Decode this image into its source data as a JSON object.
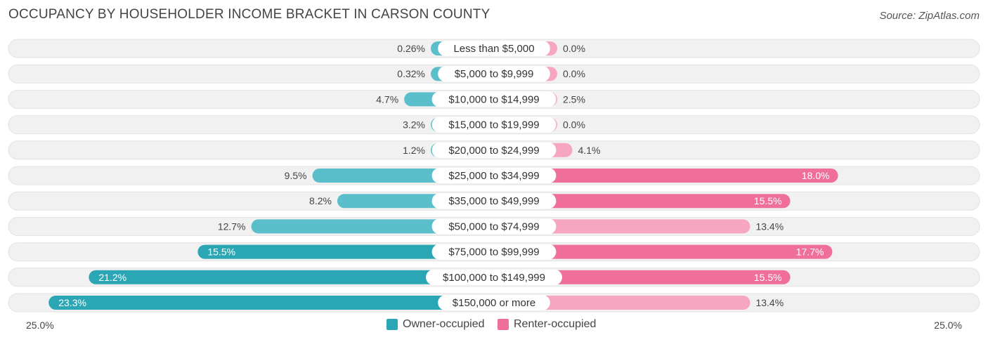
{
  "title": "OCCUPANCY BY HOUSEHOLDER INCOME BRACKET IN CARSON COUNTY",
  "source": "Source: ZipAtlas.com",
  "colors": {
    "owner": "#5bbfcb",
    "owner_dark": "#2aa6b4",
    "renter": "#f7a6c2",
    "renter_dark": "#f06e9a",
    "row_bg": "#f1f1f1"
  },
  "axis": {
    "left_label": "25.0%",
    "right_label": "25.0%"
  },
  "legend": {
    "owner": "Owner-occupied",
    "renter": "Renter-occupied"
  },
  "chart_data": {
    "type": "bar",
    "orientation": "horizontal-diverging",
    "xlim": [
      -25,
      25
    ],
    "categories": [
      "Less than $5,000",
      "$5,000 to $9,999",
      "$10,000 to $14,999",
      "$15,000 to $19,999",
      "$20,000 to $24,999",
      "$25,000 to $34,999",
      "$35,000 to $49,999",
      "$50,000 to $74,999",
      "$75,000 to $99,999",
      "$100,000 to $149,999",
      "$150,000 or more"
    ],
    "series": [
      {
        "name": "Owner-occupied",
        "values": [
          0.26,
          0.32,
          4.7,
          3.2,
          1.2,
          9.5,
          8.2,
          12.7,
          15.5,
          21.2,
          23.3
        ],
        "labels": [
          "0.26%",
          "0.32%",
          "4.7%",
          "3.2%",
          "1.2%",
          "9.5%",
          "8.2%",
          "12.7%",
          "15.5%",
          "21.2%",
          "23.3%"
        ]
      },
      {
        "name": "Renter-occupied",
        "values": [
          0.0,
          0.0,
          2.5,
          0.0,
          4.1,
          18.0,
          15.5,
          13.4,
          17.7,
          15.5,
          13.4
        ],
        "labels": [
          "0.0%",
          "0.0%",
          "2.5%",
          "0.0%",
          "4.1%",
          "18.0%",
          "15.5%",
          "13.4%",
          "17.7%",
          "15.5%",
          "13.4%"
        ]
      }
    ]
  }
}
